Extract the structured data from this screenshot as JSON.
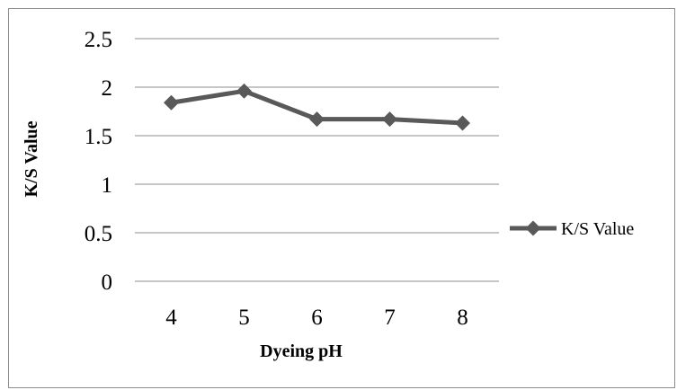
{
  "chart_data": {
    "type": "line",
    "categories": [
      "4",
      "5",
      "6",
      "7",
      "8"
    ],
    "series": [
      {
        "name": "K/S Value",
        "values": [
          1.84,
          1.96,
          1.67,
          1.67,
          1.63
        ]
      }
    ],
    "xlabel": "Dyeing pH",
    "ylabel": "K/S  Value",
    "ylim": [
      0,
      2.5
    ],
    "yticks": [
      "0",
      "0.5",
      "1",
      "1.5",
      "2",
      "2.5"
    ],
    "grid": "horizontal",
    "legend": "right",
    "colors": {
      "series": "#595959",
      "grid": "#8c8c8c",
      "frame": "#8c8c8c"
    }
  }
}
